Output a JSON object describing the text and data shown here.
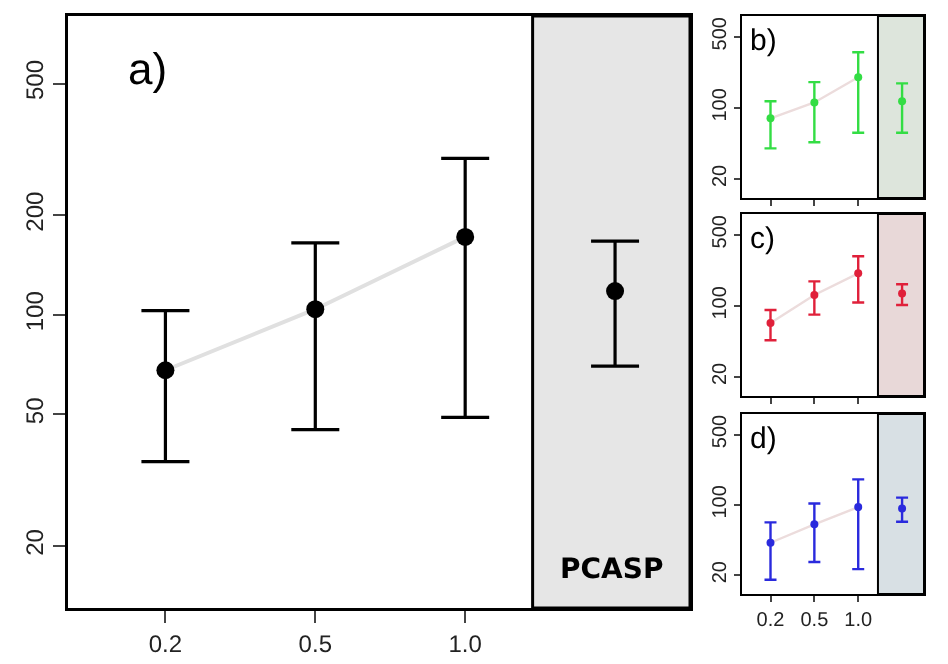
{
  "chart_data": [
    {
      "type": "scatter",
      "categories": [
        "0.2",
        "0.5",
        "1.0",
        null
      ],
      "log": true,
      "ylim": [
        13,
        800
      ],
      "yticks": [
        20,
        50,
        100,
        200,
        500
      ],
      "annotations": [
        "a)",
        "PCASP"
      ],
      "bands": [
        {
          "axis": "y",
          "from": 13,
          "to": 800,
          "color": "#e6e6e6"
        }
      ],
      "series": [
        {
          "type": "line",
          "color": "#e0e0e0",
          "marker": "none",
          "values": [
            68,
            104,
            172,
            null
          ]
        },
        {
          "type": "scatter",
          "color": "#000000",
          "marker": "circle",
          "values": [
            68,
            104,
            172,
            null
          ],
          "errors": [
            [
              36,
              103
            ],
            [
              45,
              165
            ],
            [
              49,
              297
            ],
            null
          ]
        },
        {
          "type": "scatter",
          "color": "#000000",
          "marker": "circle",
          "values": [
            null,
            null,
            null,
            118
          ],
          "errors": [
            null,
            null,
            null,
            [
              70,
              167
            ]
          ]
        }
      ]
    },
    {
      "type": "scatter",
      "categories": [
        "0.2",
        "0.5",
        "1.0",
        null
      ],
      "log": true,
      "ylim": [
        13,
        800
      ],
      "yticks": [
        20,
        100,
        500
      ],
      "tick_labels": "y",
      "annotations": [
        "b)"
      ],
      "bands": [
        {
          "axis": "y",
          "from": 13,
          "to": 800,
          "color": "#dde5dc"
        }
      ],
      "series": [
        {
          "type": "line",
          "color": "#ecdcdc",
          "marker": "none",
          "values": [
            79,
            113,
            200,
            null
          ]
        },
        {
          "type": "scatter",
          "color": "#33dd44",
          "marker": "circle",
          "values": [
            79,
            113,
            200,
            null
          ],
          "errors": [
            [
              40,
              116
            ],
            [
              46,
              179
            ],
            [
              57,
              352
            ],
            null
          ]
        },
        {
          "type": "scatter",
          "color": "#33dd44",
          "marker": "circle",
          "values": [
            null,
            null,
            null,
            116
          ],
          "errors": [
            null,
            null,
            null,
            [
              57,
              174
            ]
          ]
        }
      ]
    },
    {
      "type": "scatter",
      "categories": [
        "0.2",
        "0.5",
        "1.0",
        null
      ],
      "log": true,
      "ylim": [
        13,
        800
      ],
      "yticks": [
        20,
        100,
        500
      ],
      "tick_labels": "y",
      "annotations": [
        "c)"
      ],
      "bands": [
        {
          "axis": "y",
          "from": 13,
          "to": 800,
          "color": "#e8d8d8"
        }
      ],
      "series": [
        {
          "type": "line",
          "color": "#ecdcdc",
          "marker": "none",
          "values": [
            68,
            128,
            209,
            null
          ]
        },
        {
          "type": "scatter",
          "color": "#e0203a",
          "marker": "circle",
          "values": [
            68,
            128,
            209,
            null
          ],
          "errors": [
            [
              46,
              91
            ],
            [
              82,
              174
            ],
            [
              108,
              307
            ],
            null
          ]
        },
        {
          "type": "scatter",
          "color": "#e0203a",
          "marker": "circle",
          "values": [
            null,
            null,
            null,
            132
          ],
          "errors": [
            null,
            null,
            null,
            [
              102,
              163
            ]
          ]
        }
      ]
    },
    {
      "type": "scatter",
      "categories": [
        "0.2",
        "0.5",
        "1.0",
        null
      ],
      "log": true,
      "ylim": [
        13,
        800
      ],
      "yticks": [
        20,
        100,
        500
      ],
      "annotations": [
        "d)"
      ],
      "bands": [
        {
          "axis": "y",
          "from": 13,
          "to": 800,
          "color": "#d8e0e4"
        }
      ],
      "series": [
        {
          "type": "line",
          "color": "#ecdcdc",
          "marker": "none",
          "values": [
            42,
            64,
            95,
            null
          ]
        },
        {
          "type": "scatter",
          "color": "#2a2add",
          "marker": "circle",
          "values": [
            42,
            64,
            95,
            null
          ],
          "errors": [
            [
              18,
              67
            ],
            [
              27,
              103
            ],
            [
              23,
              179
            ],
            null
          ]
        },
        {
          "type": "scatter",
          "color": "#2a2add",
          "marker": "circle",
          "values": [
            null,
            null,
            null,
            92
          ],
          "errors": [
            null,
            null,
            null,
            [
              68,
              118
            ]
          ]
        }
      ]
    }
  ]
}
